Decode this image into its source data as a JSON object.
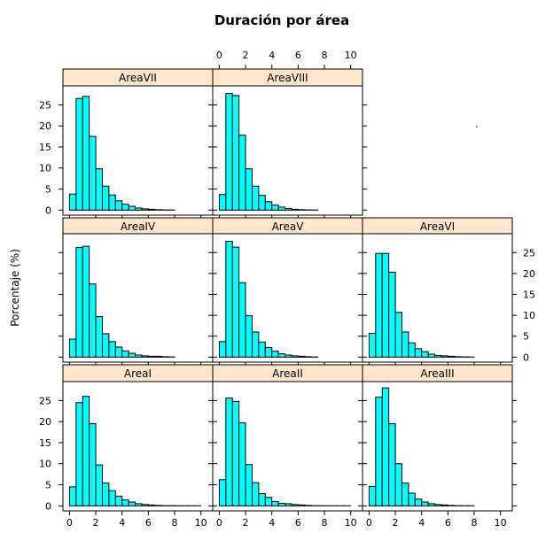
{
  "chart_data": {
    "type": "histogram-trellis",
    "title": "Duración por área",
    "xlabel": "",
    "ylabel": "Porcentaje (%)",
    "xlim": [
      -0.5,
      10.9
    ],
    "ylim": [
      -1.2,
      29.5
    ],
    "x_ticks": [
      "0",
      "2",
      "4",
      "6",
      "8",
      "10"
    ],
    "y_ticks": [
      "0",
      "5",
      "10",
      "15",
      "20",
      "25"
    ],
    "bin_width": 0.5,
    "bin_start": 0,
    "strip_color": "#ffe5cc",
    "bar_color": "#00ffff",
    "layout": {
      "columns": 3,
      "rows": 3
    },
    "panels": [
      {
        "name": "AreaVII",
        "col": 0,
        "row": 0,
        "values": [
          3.8,
          26.5,
          27.0,
          17.5,
          9.8,
          5.7,
          3.6,
          2.2,
          1.4,
          0.9,
          0.5,
          0.3,
          0.2,
          0.1,
          0.05,
          0.03
        ]
      },
      {
        "name": "AreaVIII",
        "col": 1,
        "row": 0,
        "values": [
          3.7,
          27.7,
          27.2,
          17.8,
          9.8,
          5.7,
          3.5,
          2.0,
          1.2,
          0.7,
          0.4,
          0.2,
          0.1,
          0.05,
          0.03
        ]
      },
      {
        "name": "AreaIV",
        "col": 0,
        "row": 1,
        "values": [
          4.3,
          26.2,
          26.5,
          17.5,
          9.7,
          5.6,
          3.7,
          2.4,
          1.5,
          0.9,
          0.5,
          0.3,
          0.2,
          0.2,
          0.1,
          0.05
        ]
      },
      {
        "name": "AreaV",
        "col": 1,
        "row": 1,
        "values": [
          3.7,
          27.7,
          26.3,
          17.8,
          9.9,
          6.0,
          3.6,
          2.3,
          1.4,
          0.8,
          0.5,
          0.3,
          0.2,
          0.1,
          0.05
        ]
      },
      {
        "name": "AreaVI",
        "col": 2,
        "row": 1,
        "values": [
          5.7,
          24.8,
          24.8,
          20.3,
          10.7,
          6.0,
          3.4,
          2.0,
          1.3,
          0.7,
          0.4,
          0.3,
          0.2,
          0.1,
          0.05,
          0.03
        ]
      },
      {
        "name": "AreaI",
        "col": 0,
        "row": 2,
        "values": [
          4.5,
          24.5,
          26.0,
          19.5,
          9.7,
          5.4,
          3.6,
          2.3,
          1.4,
          0.9,
          0.5,
          0.3,
          0.2,
          0.1,
          0.05,
          0.05,
          0.03,
          0.02,
          0.02,
          0.01
        ]
      },
      {
        "name": "AreaII",
        "col": 1,
        "row": 2,
        "values": [
          6.2,
          25.6,
          24.8,
          19.7,
          9.8,
          5.5,
          2.9,
          2.0,
          1.0,
          0.6,
          0.5,
          0.3,
          0.2,
          0.1,
          0.05,
          0.03,
          0.02,
          0.01,
          0.01,
          0.01
        ]
      },
      {
        "name": "AreaIII",
        "col": 2,
        "row": 2,
        "values": [
          4.6,
          25.8,
          28.0,
          19.5,
          10.0,
          5.4,
          3.0,
          1.6,
          0.9,
          0.5,
          0.3,
          0.2,
          0.1,
          0.05,
          0.03,
          0.02
        ]
      }
    ]
  }
}
